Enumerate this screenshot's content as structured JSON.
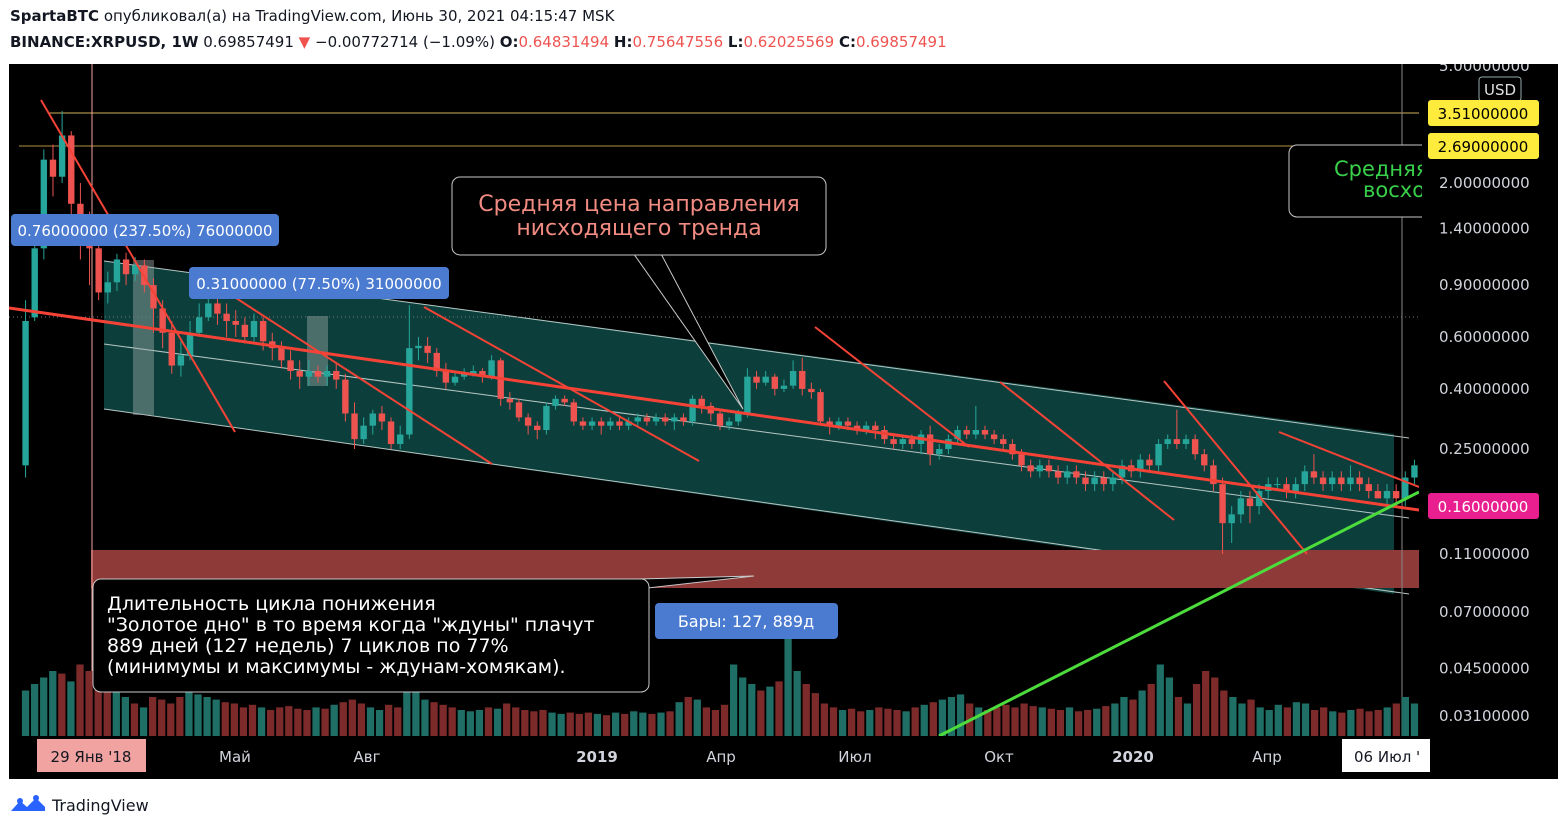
{
  "header": {
    "author": "SpartaBTC",
    "published_text": "опубликовал(а) на TradingView.com, Июнь 30, 2021 04:15:47 MSK",
    "symbol": "BINANCE:XRPUSD, 1W",
    "price": "0.69857491",
    "change_arrow": "▼",
    "change": "−0.00772714 (−1.09%)",
    "o_label": "O:",
    "o": "0.64831494",
    "h_label": "H:",
    "h": "0.75647556",
    "l_label": "L:",
    "l": "0.62025569",
    "c_label": "C:",
    "c": "0.69857491"
  },
  "labels": {
    "currency": "USD",
    "price_tag_1": "3.51000000",
    "price_tag_2": "2.69000000",
    "price_tag_current": "0.16000000",
    "measure_1": "0.76000000 (237.50%) 76000000",
    "measure_2": "0.31000000 (77.50%) 31000000",
    "bars_tag": "Бары: 127, 889д",
    "date_tag_left": "29 Янв '18",
    "date_tag_right": "06 Июл '",
    "callout_trend_line1": "Средняя цена направления",
    "callout_trend_line2": "нисходящего тренда",
    "callout_right_line1": "Средняя",
    "callout_right_line2": "восхо",
    "callout_cycle_line1": "Длительность цикла понижения",
    "callout_cycle_line2": "\"Золотое дно\" в то время когда \"ждуны\" плачут",
    "callout_cycle_line3": "889 дней (127 недель) 7 циклов по 77%",
    "callout_cycle_line4": "(минимумы и максимумы - ждунам-хомякам)."
  },
  "footer": {
    "brand": "TradingView"
  },
  "colors": {
    "up": "#26a69a",
    "down": "#ef5350",
    "background": "#000000",
    "trend_line": "#f44336",
    "support_line": "#4cdc3c",
    "channel_fill": "#0e4a45",
    "zone": "#8d3a39",
    "tag_blue": "#4a7bd0",
    "tag_yellow": "#ffeb3b",
    "tag_magenta": "#e91e8f"
  },
  "chart_data": {
    "type": "candlestick",
    "title": "BINANCE:XRPUSD, 1W",
    "y_scale": "log",
    "y_ticks": [
      "5.00000000",
      "3.51000000",
      "2.69000000",
      "2.00000000",
      "1.40000000",
      "0.90000000",
      "0.60000000",
      "0.40000000",
      "0.25000000",
      "0.16000000",
      "0.11000000",
      "0.07000000",
      "0.04500000",
      "0.03100000"
    ],
    "x_ticks": [
      "29 Янв '18",
      "Май",
      "Авг",
      "2019",
      "Апр",
      "Июл",
      "Окт",
      "2020",
      "Апр",
      "06 Июл '"
    ],
    "horizontal_levels": [
      3.51,
      2.69
    ],
    "candles": [
      {
        "o": 0.22,
        "c": 0.68,
        "h": 0.8,
        "l": 0.2
      },
      {
        "o": 0.7,
        "c": 1.2,
        "h": 1.4,
        "l": 0.68
      },
      {
        "o": 1.2,
        "c": 2.4,
        "h": 2.6,
        "l": 1.1
      },
      {
        "o": 2.4,
        "c": 2.1,
        "h": 2.7,
        "l": 1.8
      },
      {
        "o": 2.1,
        "c": 2.9,
        "h": 3.51,
        "l": 2.0
      },
      {
        "o": 2.9,
        "c": 1.7,
        "h": 3.0,
        "l": 1.5
      },
      {
        "o": 1.7,
        "c": 1.4,
        "h": 2.0,
        "l": 1.1
      },
      {
        "o": 1.4,
        "c": 1.2,
        "h": 1.6,
        "l": 0.9
      },
      {
        "o": 1.2,
        "c": 0.85,
        "h": 1.3,
        "l": 0.8
      },
      {
        "o": 0.85,
        "c": 0.92,
        "h": 1.0,
        "l": 0.78
      },
      {
        "o": 0.92,
        "c": 1.1,
        "h": 1.15,
        "l": 0.86
      },
      {
        "o": 1.1,
        "c": 0.98,
        "h": 1.16,
        "l": 0.9
      },
      {
        "o": 0.98,
        "c": 1.05,
        "h": 1.12,
        "l": 0.93
      },
      {
        "o": 1.05,
        "c": 0.9,
        "h": 1.1,
        "l": 0.85
      },
      {
        "o": 0.9,
        "c": 0.75,
        "h": 0.95,
        "l": 0.62
      },
      {
        "o": 0.75,
        "c": 0.62,
        "h": 0.8,
        "l": 0.55
      },
      {
        "o": 0.62,
        "c": 0.48,
        "h": 0.68,
        "l": 0.45
      },
      {
        "o": 0.48,
        "c": 0.52,
        "h": 0.58,
        "l": 0.44
      },
      {
        "o": 0.52,
        "c": 0.62,
        "h": 0.68,
        "l": 0.5
      },
      {
        "o": 0.62,
        "c": 0.7,
        "h": 0.78,
        "l": 0.6
      },
      {
        "o": 0.7,
        "c": 0.78,
        "h": 0.86,
        "l": 0.68
      },
      {
        "o": 0.78,
        "c": 0.72,
        "h": 0.84,
        "l": 0.66
      },
      {
        "o": 0.72,
        "c": 0.68,
        "h": 0.78,
        "l": 0.6
      },
      {
        "o": 0.68,
        "c": 0.66,
        "h": 0.74,
        "l": 0.6
      },
      {
        "o": 0.66,
        "c": 0.6,
        "h": 0.7,
        "l": 0.57
      },
      {
        "o": 0.6,
        "c": 0.68,
        "h": 0.72,
        "l": 0.58
      },
      {
        "o": 0.68,
        "c": 0.58,
        "h": 0.7,
        "l": 0.54
      },
      {
        "o": 0.58,
        "c": 0.55,
        "h": 0.62,
        "l": 0.5
      },
      {
        "o": 0.55,
        "c": 0.5,
        "h": 0.58,
        "l": 0.47
      },
      {
        "o": 0.5,
        "c": 0.46,
        "h": 0.54,
        "l": 0.43
      },
      {
        "o": 0.46,
        "c": 0.44,
        "h": 0.5,
        "l": 0.4
      },
      {
        "o": 0.44,
        "c": 0.46,
        "h": 0.5,
        "l": 0.41
      },
      {
        "o": 0.46,
        "c": 0.44,
        "h": 0.48,
        "l": 0.42
      },
      {
        "o": 0.44,
        "c": 0.46,
        "h": 0.48,
        "l": 0.41
      },
      {
        "o": 0.46,
        "c": 0.43,
        "h": 0.49,
        "l": 0.4
      },
      {
        "o": 0.43,
        "c": 0.33,
        "h": 0.45,
        "l": 0.31
      },
      {
        "o": 0.33,
        "c": 0.27,
        "h": 0.36,
        "l": 0.25
      },
      {
        "o": 0.27,
        "c": 0.3,
        "h": 0.32,
        "l": 0.26
      },
      {
        "o": 0.3,
        "c": 0.33,
        "h": 0.34,
        "l": 0.28
      },
      {
        "o": 0.33,
        "c": 0.31,
        "h": 0.35,
        "l": 0.29
      },
      {
        "o": 0.31,
        "c": 0.26,
        "h": 0.32,
        "l": 0.25
      },
      {
        "o": 0.26,
        "c": 0.28,
        "h": 0.3,
        "l": 0.25
      },
      {
        "o": 0.28,
        "c": 0.55,
        "h": 0.77,
        "l": 0.27
      },
      {
        "o": 0.55,
        "c": 0.56,
        "h": 0.6,
        "l": 0.5
      },
      {
        "o": 0.56,
        "c": 0.53,
        "h": 0.6,
        "l": 0.49
      },
      {
        "o": 0.53,
        "c": 0.46,
        "h": 0.55,
        "l": 0.44
      },
      {
        "o": 0.46,
        "c": 0.42,
        "h": 0.49,
        "l": 0.4
      },
      {
        "o": 0.42,
        "c": 0.44,
        "h": 0.46,
        "l": 0.41
      },
      {
        "o": 0.44,
        "c": 0.45,
        "h": 0.47,
        "l": 0.43
      },
      {
        "o": 0.45,
        "c": 0.46,
        "h": 0.48,
        "l": 0.44
      },
      {
        "o": 0.46,
        "c": 0.44,
        "h": 0.47,
        "l": 0.42
      },
      {
        "o": 0.44,
        "c": 0.5,
        "h": 0.52,
        "l": 0.43
      },
      {
        "o": 0.5,
        "c": 0.37,
        "h": 0.51,
        "l": 0.35
      },
      {
        "o": 0.37,
        "c": 0.36,
        "h": 0.39,
        "l": 0.34
      },
      {
        "o": 0.36,
        "c": 0.32,
        "h": 0.37,
        "l": 0.31
      },
      {
        "o": 0.32,
        "c": 0.3,
        "h": 0.33,
        "l": 0.28
      },
      {
        "o": 0.3,
        "c": 0.29,
        "h": 0.31,
        "l": 0.27
      },
      {
        "o": 0.29,
        "c": 0.35,
        "h": 0.36,
        "l": 0.28
      },
      {
        "o": 0.35,
        "c": 0.37,
        "h": 0.38,
        "l": 0.34
      },
      {
        "o": 0.37,
        "c": 0.36,
        "h": 0.38,
        "l": 0.35
      },
      {
        "o": 0.36,
        "c": 0.31,
        "h": 0.37,
        "l": 0.3
      },
      {
        "o": 0.31,
        "c": 0.3,
        "h": 0.32,
        "l": 0.29
      },
      {
        "o": 0.3,
        "c": 0.31,
        "h": 0.32,
        "l": 0.29
      },
      {
        "o": 0.31,
        "c": 0.3,
        "h": 0.32,
        "l": 0.28
      },
      {
        "o": 0.3,
        "c": 0.31,
        "h": 0.32,
        "l": 0.29
      },
      {
        "o": 0.31,
        "c": 0.3,
        "h": 0.32,
        "l": 0.29
      },
      {
        "o": 0.3,
        "c": 0.31,
        "h": 0.32,
        "l": 0.29
      },
      {
        "o": 0.31,
        "c": 0.32,
        "h": 0.33,
        "l": 0.3
      },
      {
        "o": 0.32,
        "c": 0.31,
        "h": 0.33,
        "l": 0.3
      },
      {
        "o": 0.31,
        "c": 0.32,
        "h": 0.33,
        "l": 0.3
      },
      {
        "o": 0.32,
        "c": 0.31,
        "h": 0.33,
        "l": 0.3
      },
      {
        "o": 0.31,
        "c": 0.32,
        "h": 0.33,
        "l": 0.29
      },
      {
        "o": 0.32,
        "c": 0.31,
        "h": 0.33,
        "l": 0.3
      },
      {
        "o": 0.31,
        "c": 0.37,
        "h": 0.38,
        "l": 0.3
      },
      {
        "o": 0.37,
        "c": 0.35,
        "h": 0.38,
        "l": 0.33
      },
      {
        "o": 0.35,
        "c": 0.33,
        "h": 0.36,
        "l": 0.31
      },
      {
        "o": 0.33,
        "c": 0.3,
        "h": 0.34,
        "l": 0.29
      },
      {
        "o": 0.3,
        "c": 0.31,
        "h": 0.32,
        "l": 0.29
      },
      {
        "o": 0.31,
        "c": 0.33,
        "h": 0.34,
        "l": 0.3
      },
      {
        "o": 0.33,
        "c": 0.44,
        "h": 0.47,
        "l": 0.32
      },
      {
        "o": 0.44,
        "c": 0.42,
        "h": 0.46,
        "l": 0.4
      },
      {
        "o": 0.42,
        "c": 0.44,
        "h": 0.46,
        "l": 0.41
      },
      {
        "o": 0.44,
        "c": 0.4,
        "h": 0.45,
        "l": 0.38
      },
      {
        "o": 0.4,
        "c": 0.41,
        "h": 0.43,
        "l": 0.39
      },
      {
        "o": 0.41,
        "c": 0.46,
        "h": 0.5,
        "l": 0.4
      },
      {
        "o": 0.46,
        "c": 0.4,
        "h": 0.51,
        "l": 0.38
      },
      {
        "o": 0.4,
        "c": 0.39,
        "h": 0.42,
        "l": 0.37
      },
      {
        "o": 0.39,
        "c": 0.31,
        "h": 0.4,
        "l": 0.3
      },
      {
        "o": 0.31,
        "c": 0.3,
        "h": 0.32,
        "l": 0.28
      },
      {
        "o": 0.3,
        "c": 0.31,
        "h": 0.32,
        "l": 0.29
      },
      {
        "o": 0.31,
        "c": 0.3,
        "h": 0.32,
        "l": 0.29
      },
      {
        "o": 0.3,
        "c": 0.29,
        "h": 0.31,
        "l": 0.28
      },
      {
        "o": 0.29,
        "c": 0.3,
        "h": 0.31,
        "l": 0.28
      },
      {
        "o": 0.3,
        "c": 0.29,
        "h": 0.31,
        "l": 0.27
      },
      {
        "o": 0.29,
        "c": 0.27,
        "h": 0.3,
        "l": 0.26
      },
      {
        "o": 0.27,
        "c": 0.26,
        "h": 0.28,
        "l": 0.25
      },
      {
        "o": 0.26,
        "c": 0.27,
        "h": 0.28,
        "l": 0.25
      },
      {
        "o": 0.27,
        "c": 0.26,
        "h": 0.28,
        "l": 0.25
      },
      {
        "o": 0.26,
        "c": 0.28,
        "h": 0.29,
        "l": 0.24
      },
      {
        "o": 0.28,
        "c": 0.24,
        "h": 0.3,
        "l": 0.22
      },
      {
        "o": 0.24,
        "c": 0.25,
        "h": 0.26,
        "l": 0.23
      },
      {
        "o": 0.25,
        "c": 0.27,
        "h": 0.28,
        "l": 0.24
      },
      {
        "o": 0.27,
        "c": 0.29,
        "h": 0.3,
        "l": 0.26
      },
      {
        "o": 0.29,
        "c": 0.28,
        "h": 0.3,
        "l": 0.27
      },
      {
        "o": 0.28,
        "c": 0.29,
        "h": 0.35,
        "l": 0.27
      },
      {
        "o": 0.29,
        "c": 0.28,
        "h": 0.3,
        "l": 0.27
      },
      {
        "o": 0.28,
        "c": 0.27,
        "h": 0.29,
        "l": 0.26
      },
      {
        "o": 0.27,
        "c": 0.26,
        "h": 0.28,
        "l": 0.25
      },
      {
        "o": 0.26,
        "c": 0.24,
        "h": 0.27,
        "l": 0.23
      },
      {
        "o": 0.24,
        "c": 0.22,
        "h": 0.25,
        "l": 0.21
      },
      {
        "o": 0.22,
        "c": 0.21,
        "h": 0.23,
        "l": 0.2
      },
      {
        "o": 0.21,
        "c": 0.22,
        "h": 0.23,
        "l": 0.2
      },
      {
        "o": 0.22,
        "c": 0.21,
        "h": 0.23,
        "l": 0.2
      },
      {
        "o": 0.21,
        "c": 0.2,
        "h": 0.22,
        "l": 0.19
      },
      {
        "o": 0.2,
        "c": 0.21,
        "h": 0.22,
        "l": 0.19
      },
      {
        "o": 0.21,
        "c": 0.2,
        "h": 0.22,
        "l": 0.19
      },
      {
        "o": 0.2,
        "c": 0.19,
        "h": 0.21,
        "l": 0.18
      },
      {
        "o": 0.19,
        "c": 0.2,
        "h": 0.21,
        "l": 0.18
      },
      {
        "o": 0.2,
        "c": 0.19,
        "h": 0.21,
        "l": 0.18
      },
      {
        "o": 0.19,
        "c": 0.2,
        "h": 0.21,
        "l": 0.18
      },
      {
        "o": 0.2,
        "c": 0.22,
        "h": 0.23,
        "l": 0.19
      },
      {
        "o": 0.22,
        "c": 0.21,
        "h": 0.23,
        "l": 0.2
      },
      {
        "o": 0.21,
        "c": 0.23,
        "h": 0.24,
        "l": 0.2
      },
      {
        "o": 0.23,
        "c": 0.22,
        "h": 0.24,
        "l": 0.21
      },
      {
        "o": 0.22,
        "c": 0.26,
        "h": 0.27,
        "l": 0.21
      },
      {
        "o": 0.26,
        "c": 0.27,
        "h": 0.28,
        "l": 0.25
      },
      {
        "o": 0.27,
        "c": 0.26,
        "h": 0.34,
        "l": 0.25
      },
      {
        "o": 0.26,
        "c": 0.27,
        "h": 0.28,
        "l": 0.25
      },
      {
        "o": 0.27,
        "c": 0.24,
        "h": 0.28,
        "l": 0.23
      },
      {
        "o": 0.24,
        "c": 0.22,
        "h": 0.25,
        "l": 0.21
      },
      {
        "o": 0.22,
        "c": 0.19,
        "h": 0.23,
        "l": 0.18
      },
      {
        "o": 0.19,
        "c": 0.14,
        "h": 0.2,
        "l": 0.11
      },
      {
        "o": 0.14,
        "c": 0.15,
        "h": 0.16,
        "l": 0.12
      },
      {
        "o": 0.15,
        "c": 0.17,
        "h": 0.18,
        "l": 0.14
      },
      {
        "o": 0.17,
        "c": 0.16,
        "h": 0.18,
        "l": 0.14
      },
      {
        "o": 0.16,
        "c": 0.18,
        "h": 0.19,
        "l": 0.15
      },
      {
        "o": 0.18,
        "c": 0.19,
        "h": 0.2,
        "l": 0.17
      },
      {
        "o": 0.19,
        "c": 0.19,
        "h": 0.2,
        "l": 0.18
      },
      {
        "o": 0.19,
        "c": 0.18,
        "h": 0.2,
        "l": 0.17
      },
      {
        "o": 0.18,
        "c": 0.19,
        "h": 0.2,
        "l": 0.17
      },
      {
        "o": 0.19,
        "c": 0.21,
        "h": 0.22,
        "l": 0.18
      },
      {
        "o": 0.21,
        "c": 0.2,
        "h": 0.24,
        "l": 0.19
      },
      {
        "o": 0.2,
        "c": 0.19,
        "h": 0.21,
        "l": 0.18
      },
      {
        "o": 0.19,
        "c": 0.2,
        "h": 0.21,
        "l": 0.18
      },
      {
        "o": 0.2,
        "c": 0.19,
        "h": 0.21,
        "l": 0.18
      },
      {
        "o": 0.19,
        "c": 0.2,
        "h": 0.22,
        "l": 0.18
      },
      {
        "o": 0.2,
        "c": 0.19,
        "h": 0.21,
        "l": 0.18
      },
      {
        "o": 0.19,
        "c": 0.18,
        "h": 0.2,
        "l": 0.17
      },
      {
        "o": 0.18,
        "c": 0.17,
        "h": 0.19,
        "l": 0.17
      },
      {
        "o": 0.17,
        "c": 0.18,
        "h": 0.19,
        "l": 0.16
      },
      {
        "o": 0.18,
        "c": 0.17,
        "h": 0.19,
        "l": 0.16
      },
      {
        "o": 0.17,
        "c": 0.2,
        "h": 0.21,
        "l": 0.16
      },
      {
        "o": 0.2,
        "c": 0.22,
        "h": 0.23,
        "l": 0.19
      }
    ],
    "volumes": [
      0.35,
      0.4,
      0.45,
      0.5,
      0.48,
      0.42,
      0.55,
      0.5,
      0.45,
      0.4,
      0.35,
      0.3,
      0.25,
      0.22,
      0.3,
      0.28,
      0.25,
      0.3,
      0.35,
      0.32,
      0.3,
      0.28,
      0.26,
      0.25,
      0.22,
      0.24,
      0.22,
      0.2,
      0.22,
      0.23,
      0.21,
      0.2,
      0.22,
      0.21,
      0.24,
      0.26,
      0.28,
      0.25,
      0.22,
      0.2,
      0.24,
      0.22,
      0.45,
      0.35,
      0.28,
      0.26,
      0.24,
      0.22,
      0.2,
      0.19,
      0.2,
      0.22,
      0.21,
      0.25,
      0.22,
      0.2,
      0.19,
      0.2,
      0.18,
      0.17,
      0.18,
      0.17,
      0.18,
      0.17,
      0.16,
      0.18,
      0.17,
      0.19,
      0.18,
      0.17,
      0.18,
      0.19,
      0.26,
      0.3,
      0.28,
      0.22,
      0.2,
      0.24,
      0.55,
      0.45,
      0.4,
      0.35,
      0.38,
      0.42,
      0.78,
      0.5,
      0.4,
      0.33,
      0.25,
      0.22,
      0.2,
      0.21,
      0.19,
      0.2,
      0.22,
      0.21,
      0.2,
      0.19,
      0.22,
      0.24,
      0.26,
      0.28,
      0.3,
      0.32,
      0.25,
      0.22,
      0.2,
      0.22,
      0.24,
      0.22,
      0.25,
      0.23,
      0.22,
      0.21,
      0.2,
      0.22,
      0.19,
      0.2,
      0.21,
      0.23,
      0.25,
      0.3,
      0.28,
      0.35,
      0.4,
      0.55,
      0.45,
      0.3,
      0.25,
      0.4,
      0.5,
      0.45,
      0.35,
      0.3,
      0.25,
      0.28,
      0.22,
      0.2,
      0.24,
      0.22,
      0.26,
      0.25,
      0.2,
      0.22,
      0.19,
      0.18,
      0.2,
      0.21,
      0.19,
      0.2,
      0.22,
      0.25,
      0.3,
      0.25
    ]
  }
}
